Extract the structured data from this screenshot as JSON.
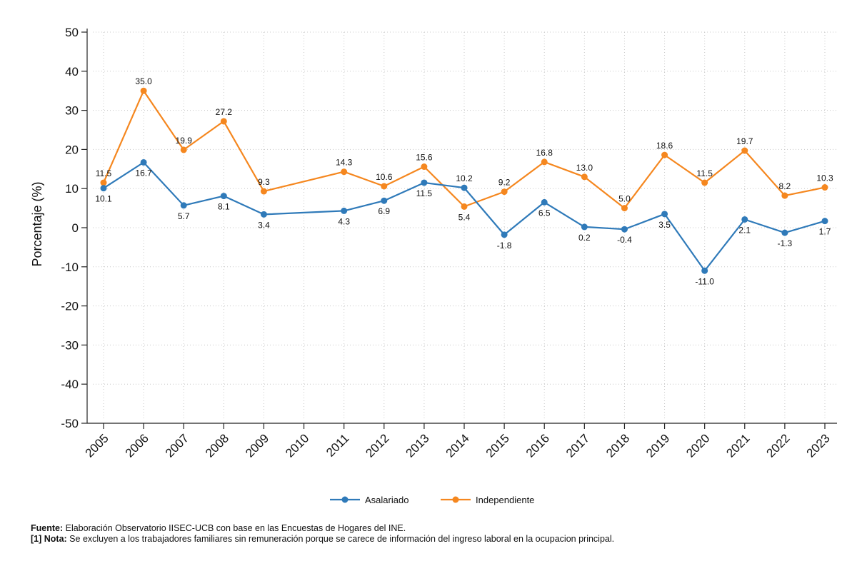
{
  "chart_data": {
    "type": "line",
    "title": "",
    "xlabel": "",
    "ylabel": "Porcentaje (%)",
    "ylim": [
      -50,
      50
    ],
    "yticks": [
      "50",
      "40",
      "30",
      "20",
      "10",
      "0",
      "-10",
      "-20",
      "-30",
      "-40",
      "-50"
    ],
    "ytick_values": [
      50,
      40,
      30,
      20,
      10,
      0,
      -10,
      -20,
      -30,
      -40,
      -50
    ],
    "categories": [
      "2005",
      "2006",
      "2007",
      "2008",
      "2009",
      "2010",
      "2011",
      "2012",
      "2013",
      "2014",
      "2015",
      "2016",
      "2017",
      "2018",
      "2019",
      "2020",
      "2021",
      "2022",
      "2023"
    ],
    "grid": true,
    "legend_position": "bottom-center",
    "series": [
      {
        "name": "Asalariado",
        "color": "#2f7ab9",
        "values": [
          10.1,
          16.7,
          5.7,
          8.1,
          3.4,
          null,
          4.3,
          6.9,
          11.5,
          10.2,
          -1.8,
          6.5,
          0.2,
          -0.4,
          3.5,
          -11.0,
          2.1,
          -1.3,
          1.7
        ],
        "labels": [
          "10.1",
          "16.7",
          "5.7",
          "8.1",
          "3.4",
          "",
          "4.3",
          "6.9",
          "11.5",
          "10.2",
          "-1.8",
          "6.5",
          "0.2",
          "-0.4",
          "3.5",
          "-11.0",
          "2.1",
          "-1.3",
          "1.7"
        ]
      },
      {
        "name": "Independiente",
        "color": "#f5871f",
        "values": [
          11.5,
          35.0,
          19.9,
          27.2,
          9.3,
          null,
          14.3,
          10.6,
          15.6,
          5.4,
          9.2,
          16.8,
          13.0,
          5.0,
          18.6,
          11.5,
          19.7,
          8.2,
          10.3
        ],
        "labels": [
          "11.5",
          "35.0",
          "19.9",
          "27.2",
          "9.3",
          "",
          "14.3",
          "10.6",
          "15.6",
          "5.4",
          "9.2",
          "16.8",
          "13.0",
          "5.0",
          "18.6",
          "11.5",
          "19.7",
          "8.2",
          "10.3"
        ]
      }
    ]
  },
  "notes": {
    "source_label": "Fuente:",
    "source_text": " Elaboración Observatorio IISEC-UCB con base en las Encuestas de Hogares del INE.",
    "note_label": "[1] Nota:",
    "note_text": " Se excluyen a los trabajadores familiares sin remuneración porque se carece de información del ingreso laboral en la ocupacion principal."
  }
}
